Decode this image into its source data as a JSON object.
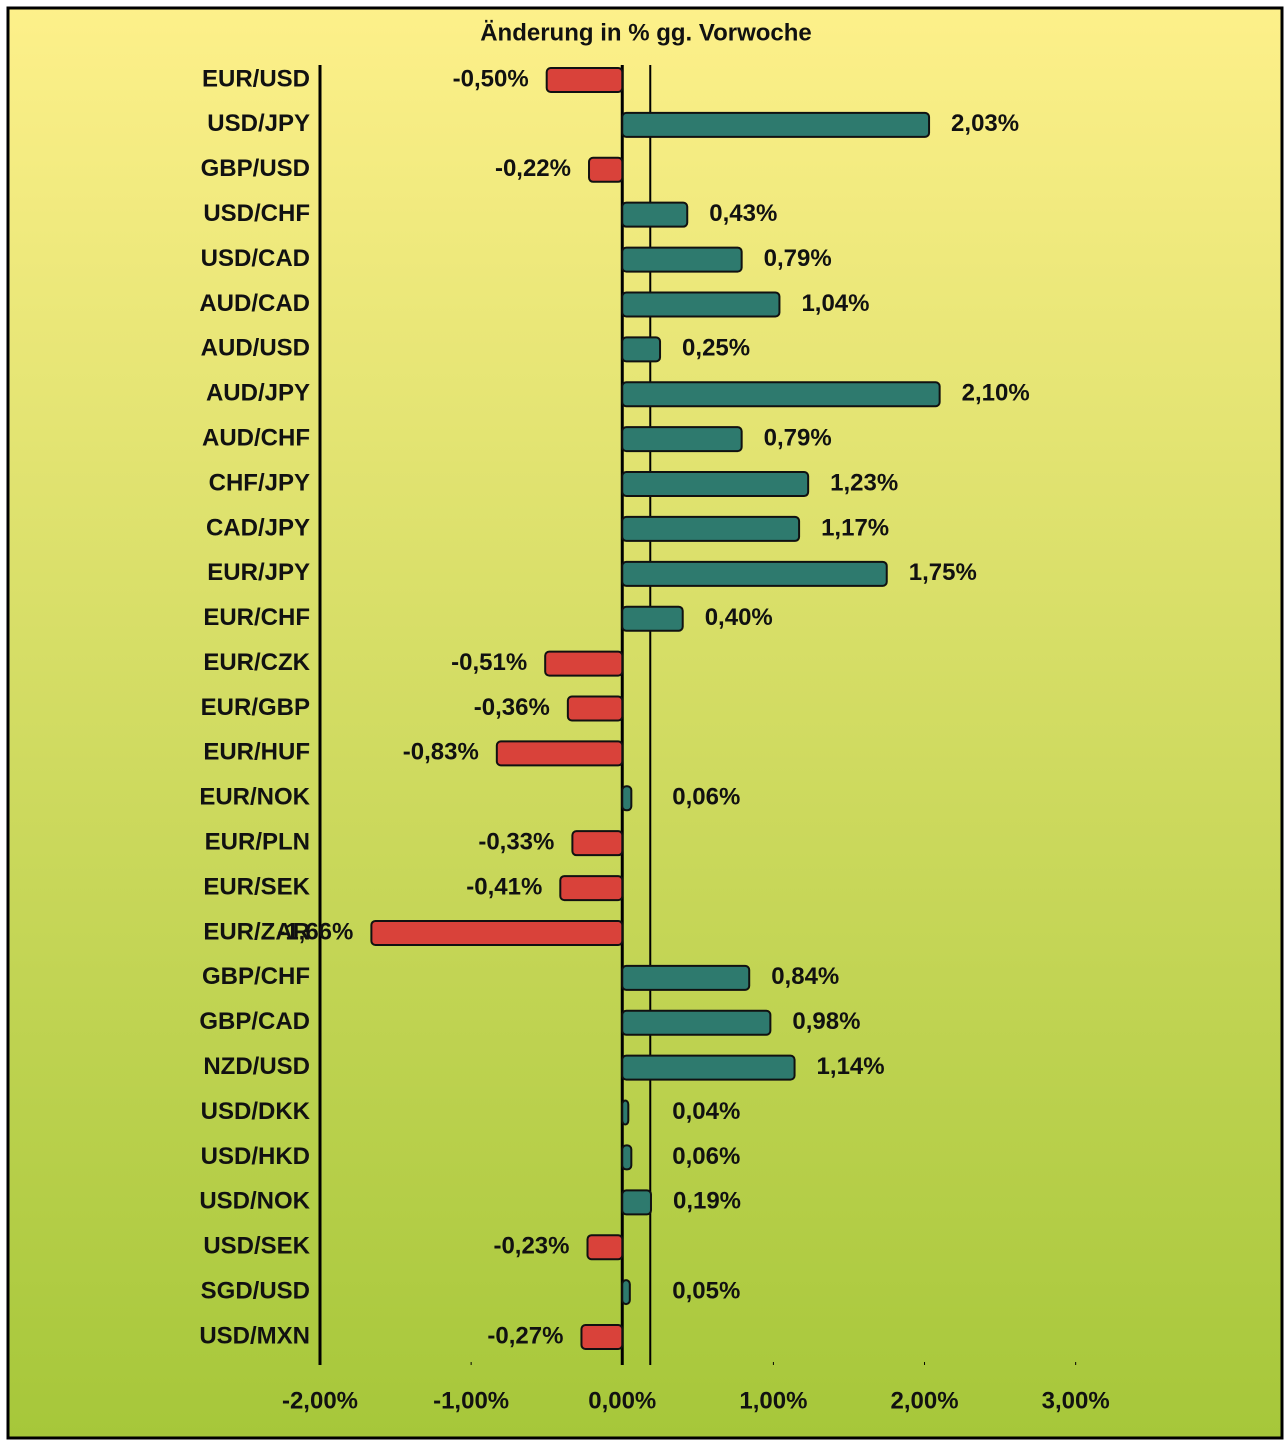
{
  "chart_data": {
    "type": "bar",
    "orientation": "horizontal",
    "title": "Änderung in % gg. Vorwoche",
    "categories": [
      "EUR/USD",
      "USD/JPY",
      "GBP/USD",
      "USD/CHF",
      "USD/CAD",
      "AUD/CAD",
      "AUD/USD",
      "AUD/JPY",
      "AUD/CHF",
      "CHF/JPY",
      "CAD/JPY",
      "EUR/JPY",
      "EUR/CHF",
      "EUR/CZK",
      "EUR/GBP",
      "EUR/HUF",
      "EUR/NOK",
      "EUR/PLN",
      "EUR/SEK",
      "EUR/ZAR",
      "GBP/CHF",
      "GBP/CAD",
      "NZD/USD",
      "USD/DKK",
      "USD/HKD",
      "USD/NOK",
      "USD/SEK",
      "SGD/USD",
      "USD/MXN"
    ],
    "values": [
      -0.5,
      2.03,
      -0.22,
      0.43,
      0.79,
      1.04,
      0.25,
      2.1,
      0.79,
      1.23,
      1.17,
      1.75,
      0.4,
      -0.51,
      -0.36,
      -0.83,
      0.06,
      -0.33,
      -0.41,
      -1.66,
      0.84,
      0.98,
      1.14,
      0.04,
      0.06,
      0.19,
      -0.23,
      0.05,
      -0.27
    ],
    "value_labels": [
      "-0,50%",
      "2,03%",
      "-0,22%",
      "0,43%",
      "0,79%",
      "1,04%",
      "0,25%",
      "2,10%",
      "0,79%",
      "1,23%",
      "1,17%",
      "1,75%",
      "0,40%",
      "-0,51%",
      "-0,36%",
      "-0,83%",
      "0,06%",
      "-0,33%",
      "-0,41%",
      "-1,66%",
      "0,84%",
      "0,98%",
      "1,14%",
      "0,04%",
      "0,06%",
      "0,19%",
      "-0,23%",
      "0,05%",
      "-0,27%"
    ],
    "positive_color": "#2e7a6e",
    "negative_color": "#d9423a",
    "xlim": [
      -2,
      3.3
    ],
    "xticks": [
      {
        "value": -2,
        "label": "-2,00%"
      },
      {
        "value": -1,
        "label": "-1,00%"
      },
      {
        "value": 0,
        "label": "0,00%"
      },
      {
        "value": 1,
        "label": "1,00%"
      },
      {
        "value": 2,
        "label": "2,00%"
      },
      {
        "value": 3,
        "label": "3,00%"
      }
    ]
  }
}
